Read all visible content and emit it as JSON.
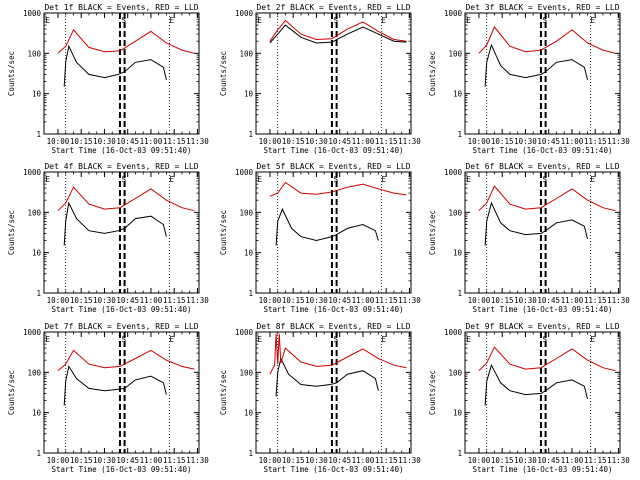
{
  "chart_data": [
    {
      "type": "line",
      "title": "Det 1f BLACK = Events, RED = LLD",
      "xlabel": "Start Time (16-Oct-03 09:51:40)",
      "ylabel": "Counts/sec",
      "yscale": "log",
      "ylim": [
        1,
        1000
      ],
      "y_ticks": [
        "1",
        "10",
        "100",
        "1000"
      ],
      "x_ticks": [
        "10:00",
        "10:15",
        "10:30",
        "10:45",
        "11:00",
        "11:15",
        "11:30"
      ],
      "markers": [
        "E",
        "S",
        "E"
      ],
      "series": [
        {
          "color": "#000000",
          "x": [
            "10:04",
            "10:05",
            "10:07",
            "10:12",
            "10:20",
            "10:30",
            "10:39",
            "10:43",
            "10:50",
            "11:00",
            "11:08",
            "11:10"
          ],
          "y": [
            15,
            60,
            150,
            60,
            30,
            25,
            30,
            35,
            60,
            70,
            45,
            22
          ]
        },
        {
          "color": "#cc0000",
          "x": [
            "10:00",
            "10:05",
            "10:10",
            "10:20",
            "10:30",
            "10:40",
            "10:50",
            "11:00",
            "11:10",
            "11:20",
            "11:28"
          ],
          "y": [
            100,
            150,
            380,
            140,
            110,
            115,
            200,
            350,
            180,
            120,
            100
          ]
        }
      ]
    },
    {
      "type": "line",
      "title": "Det 2f BLACK = Events, RED = LLD",
      "xlabel": "Start Time (16-Oct-03 09:51:40)",
      "ylabel": "Counts/sec",
      "yscale": "log",
      "ylim": [
        1,
        1000
      ],
      "y_ticks": [
        "1",
        "10",
        "100",
        "1000"
      ],
      "x_ticks": [
        "10:00",
        "10:15",
        "10:30",
        "10:45",
        "11:00",
        "11:15",
        "11:30"
      ],
      "markers": [
        "E",
        "S",
        "E"
      ],
      "series": [
        {
          "color": "#000000",
          "x": [
            "10:00",
            "10:05",
            "10:10",
            "10:20",
            "10:30",
            "10:40",
            "10:50",
            "11:00",
            "11:10",
            "11:20",
            "11:28"
          ],
          "y": [
            180,
            300,
            500,
            250,
            180,
            190,
            300,
            450,
            300,
            200,
            190
          ]
        },
        {
          "color": "#cc0000",
          "x": [
            "10:00",
            "10:05",
            "10:10",
            "10:20",
            "10:30",
            "10:40",
            "10:50",
            "11:00",
            "11:10",
            "11:20",
            "11:28"
          ],
          "y": [
            200,
            380,
            650,
            300,
            220,
            230,
            400,
            600,
            350,
            220,
            200
          ]
        }
      ]
    },
    {
      "type": "line",
      "title": "Det 3f BLACK = Events, RED = LLD",
      "xlabel": "Start Time (16-Oct-03 09:51:40)",
      "ylabel": "Counts/sec",
      "yscale": "log",
      "ylim": [
        1,
        1000
      ],
      "y_ticks": [
        "1",
        "10",
        "100",
        "1000"
      ],
      "x_ticks": [
        "10:00",
        "10:15",
        "10:30",
        "10:45",
        "11:00",
        "11:15",
        "11:30"
      ],
      "markers": [
        "E",
        "S",
        "E"
      ],
      "series": [
        {
          "color": "#000000",
          "x": [
            "10:04",
            "10:05",
            "10:08",
            "10:14",
            "10:20",
            "10:30",
            "10:40",
            "10:43",
            "10:50",
            "11:00",
            "11:08",
            "11:10"
          ],
          "y": [
            15,
            60,
            160,
            50,
            30,
            25,
            30,
            35,
            60,
            70,
            45,
            22
          ]
        },
        {
          "color": "#cc0000",
          "x": [
            "10:00",
            "10:05",
            "10:10",
            "10:20",
            "10:30",
            "10:40",
            "10:50",
            "11:00",
            "11:10",
            "11:20",
            "11:28"
          ],
          "y": [
            100,
            160,
            450,
            150,
            110,
            120,
            200,
            380,
            180,
            120,
            100
          ]
        }
      ]
    },
    {
      "type": "line",
      "title": "Det 4f BLACK = Events, RED = LLD",
      "xlabel": "Start Time (16-Oct-03 09:51:40)",
      "ylabel": "Counts/sec",
      "yscale": "log",
      "ylim": [
        1,
        1000
      ],
      "y_ticks": [
        "1",
        "10",
        "100",
        "1000"
      ],
      "x_ticks": [
        "10:00",
        "10:15",
        "10:30",
        "10:45",
        "11:00",
        "11:15",
        "11:30"
      ],
      "markers": [
        "E",
        "S",
        "E"
      ],
      "series": [
        {
          "color": "#000000",
          "x": [
            "10:04",
            "10:05",
            "10:07",
            "10:12",
            "10:20",
            "10:30",
            "10:39",
            "10:43",
            "10:50",
            "11:00",
            "11:08",
            "11:10"
          ],
          "y": [
            15,
            60,
            170,
            70,
            35,
            30,
            35,
            40,
            70,
            80,
            50,
            25
          ]
        },
        {
          "color": "#cc0000",
          "x": [
            "10:00",
            "10:05",
            "10:10",
            "10:20",
            "10:30",
            "10:40",
            "10:50",
            "11:00",
            "11:10",
            "11:20",
            "11:28"
          ],
          "y": [
            110,
            170,
            420,
            160,
            120,
            130,
            220,
            380,
            200,
            130,
            110
          ]
        }
      ]
    },
    {
      "type": "line",
      "title": "Det 5f BLACK = Events, RED = LLD",
      "xlabel": "Start Time (16-Oct-03 09:51:40)",
      "ylabel": "Counts/sec",
      "yscale": "log",
      "ylim": [
        1,
        1000
      ],
      "y_ticks": [
        "1",
        "10",
        "100",
        "1000"
      ],
      "x_ticks": [
        "10:00",
        "10:15",
        "10:30",
        "10:45",
        "11:00",
        "11:15",
        "11:30"
      ],
      "markers": [
        "E",
        "S",
        "E"
      ],
      "series": [
        {
          "color": "#000000",
          "x": [
            "10:04",
            "10:05",
            "10:08",
            "10:14",
            "10:20",
            "10:30",
            "10:40",
            "10:43",
            "10:50",
            "11:00",
            "11:08",
            "11:10"
          ],
          "y": [
            15,
            60,
            120,
            40,
            25,
            20,
            25,
            28,
            40,
            50,
            35,
            20
          ]
        },
        {
          "color": "#cc0000",
          "x": [
            "10:00",
            "10:05",
            "10:10",
            "10:20",
            "10:30",
            "10:40",
            "10:50",
            "11:00",
            "11:10",
            "11:20",
            "11:28"
          ],
          "y": [
            250,
            300,
            550,
            300,
            280,
            320,
            420,
            500,
            380,
            300,
            270
          ]
        }
      ]
    },
    {
      "type": "line",
      "title": "Det 6f BLACK = Events, RED = LLD",
      "xlabel": "Start Time (16-Oct-03 09:51:40)",
      "ylabel": "Counts/sec",
      "yscale": "log",
      "ylim": [
        1,
        1000
      ],
      "y_ticks": [
        "1",
        "10",
        "100",
        "1000"
      ],
      "x_ticks": [
        "10:00",
        "10:15",
        "10:30",
        "10:45",
        "11:00",
        "11:15",
        "11:30"
      ],
      "markers": [
        "E",
        "S",
        "E"
      ],
      "series": [
        {
          "color": "#000000",
          "x": [
            "10:04",
            "10:05",
            "10:08",
            "10:14",
            "10:20",
            "10:30",
            "10:40",
            "10:43",
            "10:50",
            "11:00",
            "11:08",
            "11:10"
          ],
          "y": [
            15,
            60,
            170,
            55,
            35,
            28,
            30,
            35,
            55,
            65,
            45,
            22
          ]
        },
        {
          "color": "#cc0000",
          "x": [
            "10:00",
            "10:05",
            "10:10",
            "10:20",
            "10:30",
            "10:40",
            "10:50",
            "11:00",
            "11:10",
            "11:20",
            "11:28"
          ],
          "y": [
            110,
            170,
            450,
            160,
            120,
            130,
            220,
            380,
            200,
            130,
            110
          ]
        }
      ]
    },
    {
      "type": "line",
      "title": "Det 7f BLACK = Events, RED = LLD",
      "xlabel": "Start Time (16-Oct-03 09:51:40)",
      "ylabel": "Counts/sec",
      "yscale": "log",
      "ylim": [
        1,
        1000
      ],
      "y_ticks": [
        "1",
        "10",
        "100",
        "1000"
      ],
      "x_ticks": [
        "10:00",
        "10:15",
        "10:30",
        "10:45",
        "11:00",
        "11:15",
        "11:30"
      ],
      "markers": [
        "E",
        "S",
        "E"
      ],
      "series": [
        {
          "color": "#000000",
          "x": [
            "10:04",
            "10:05",
            "10:07",
            "10:12",
            "10:20",
            "10:30",
            "10:39",
            "10:43",
            "10:50",
            "11:00",
            "11:08",
            "11:10"
          ],
          "y": [
            15,
            60,
            140,
            70,
            40,
            35,
            38,
            40,
            65,
            80,
            55,
            28
          ]
        },
        {
          "color": "#cc0000",
          "x": [
            "10:00",
            "10:05",
            "10:10",
            "10:20",
            "10:30",
            "10:40",
            "10:50",
            "11:00",
            "11:10",
            "11:20",
            "11:28"
          ],
          "y": [
            110,
            160,
            350,
            160,
            130,
            140,
            220,
            350,
            200,
            140,
            120
          ]
        }
      ]
    },
    {
      "type": "line",
      "title": "Det 8f BLACK = Events, RED = LLD",
      "xlabel": "Start Time (16-Oct-03 09:51:40)",
      "ylabel": "Counts/sec",
      "yscale": "log",
      "ylim": [
        1,
        1000
      ],
      "y_ticks": [
        "1",
        "10",
        "100",
        "1000"
      ],
      "x_ticks": [
        "10:00",
        "10:15",
        "10:30",
        "10:45",
        "11:00",
        "11:15",
        "11:30"
      ],
      "markers": [
        "E",
        "S",
        "E"
      ],
      "series": [
        {
          "color": "#000000",
          "x": [
            "10:04",
            "10:05",
            "10:07",
            "10:12",
            "10:20",
            "10:30",
            "10:39",
            "10:43",
            "10:50",
            "11:00",
            "11:08",
            "11:10"
          ],
          "y": [
            25,
            100,
            220,
            90,
            50,
            45,
            50,
            55,
            90,
            110,
            70,
            35
          ]
        },
        {
          "color": "#cc0000",
          "x": [
            "10:00",
            "10:03",
            "10:04",
            "10:05",
            "10:06",
            "10:07",
            "10:10",
            "10:20",
            "10:30",
            "10:40",
            "10:50",
            "11:00",
            "11:10",
            "11:20",
            "11:28"
          ],
          "y": [
            90,
            150,
            900,
            160,
            900,
            170,
            400,
            180,
            140,
            150,
            240,
            380,
            220,
            150,
            130
          ]
        }
      ]
    },
    {
      "type": "line",
      "title": "Det 9f BLACK = Events, RED = LLD",
      "xlabel": "Start Time (16-Oct-03 09:51:40)",
      "ylabel": "Counts/sec",
      "yscale": "log",
      "ylim": [
        1,
        1000
      ],
      "y_ticks": [
        "1",
        "10",
        "100",
        "1000"
      ],
      "x_ticks": [
        "10:00",
        "10:15",
        "10:30",
        "10:45",
        "11:00",
        "11:15",
        "11:30"
      ],
      "markers": [
        "E",
        "S",
        "E"
      ],
      "series": [
        {
          "color": "#000000",
          "x": [
            "10:04",
            "10:05",
            "10:08",
            "10:14",
            "10:20",
            "10:30",
            "10:40",
            "10:43",
            "10:50",
            "11:00",
            "11:08",
            "11:10"
          ],
          "y": [
            15,
            60,
            150,
            55,
            35,
            28,
            30,
            35,
            55,
            65,
            45,
            22
          ]
        },
        {
          "color": "#cc0000",
          "x": [
            "10:00",
            "10:05",
            "10:10",
            "10:20",
            "10:30",
            "10:40",
            "10:50",
            "11:00",
            "11:10",
            "11:20",
            "11:28"
          ],
          "y": [
            110,
            170,
            420,
            160,
            120,
            130,
            220,
            380,
            200,
            130,
            110
          ]
        }
      ]
    }
  ]
}
